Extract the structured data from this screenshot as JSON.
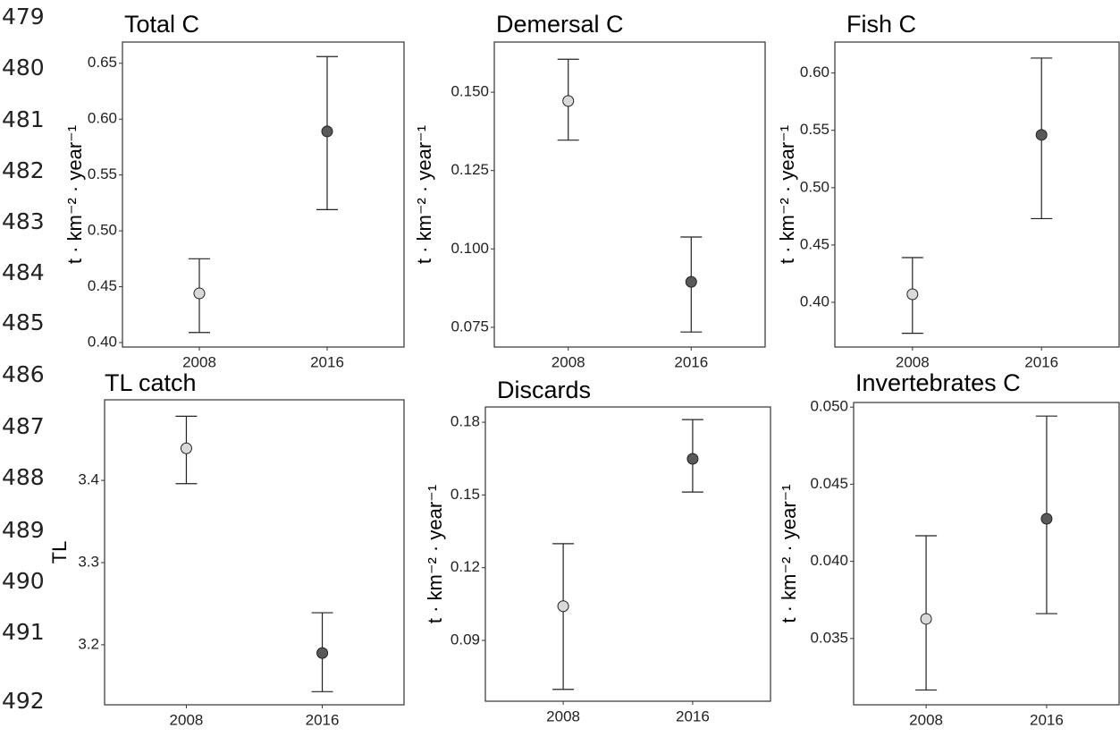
{
  "line_numbers": [
    "479",
    "480",
    "481",
    "482",
    "483",
    "484",
    "485",
    "486",
    "487",
    "488",
    "489",
    "490",
    "491",
    "492"
  ],
  "chart_data": [
    {
      "type": "errorbar",
      "title": "Total C",
      "y_label": "t · km⁻² · year⁻¹",
      "categories": [
        "2008",
        "2016"
      ],
      "values": [
        0.444,
        0.589
      ],
      "lower": [
        0.409,
        0.519
      ],
      "upper": [
        0.475,
        0.656
      ],
      "colors": [
        "#d9d9d9",
        "#595959"
      ],
      "ylim": [
        0.396,
        0.669
      ],
      "yticks": [
        {
          "value": 0.4,
          "label": "0.40"
        },
        0.45,
        {
          "value": 0.5,
          "label": "0.50"
        },
        0.55,
        {
          "value": 0.6,
          "label": "0.60"
        },
        0.65
      ]
    },
    {
      "type": "errorbar",
      "title": "Demersal C",
      "y_label": "t · km⁻² · year⁻¹",
      "categories": [
        "2008",
        "2016"
      ],
      "values": [
        0.1472,
        0.0895
      ],
      "lower": [
        0.1347,
        0.0735
      ],
      "upper": [
        0.1605,
        0.1038
      ],
      "colors": [
        "#d9d9d9",
        "#595959"
      ],
      "ylim": [
        0.0687,
        0.166
      ],
      "yticks": [
        {
          "value": 0.075,
          "label": "0.075"
        },
        {
          "value": 0.1,
          "label": "0.100"
        },
        {
          "value": 0.125,
          "label": "0.125"
        },
        {
          "value": 0.15,
          "label": "0.150"
        }
      ]
    },
    {
      "type": "errorbar",
      "title": "Fish C",
      "y_label": "t · km⁻² · year⁻¹",
      "categories": [
        "2008",
        "2016"
      ],
      "values": [
        0.407,
        0.546
      ],
      "lower": [
        0.373,
        0.473
      ],
      "upper": [
        0.439,
        0.613
      ],
      "colors": [
        "#d9d9d9",
        "#595959"
      ],
      "ylim": [
        0.361,
        0.627
      ],
      "yticks": [
        {
          "value": 0.4,
          "label": "0.40"
        },
        0.45,
        {
          "value": 0.5,
          "label": "0.50"
        },
        0.55,
        {
          "value": 0.6,
          "label": "0.60"
        }
      ]
    },
    {
      "type": "errorbar",
      "title": "TL catch",
      "y_label": "TL",
      "categories": [
        "2008",
        "2016"
      ],
      "values": [
        3.439,
        3.19
      ],
      "lower": [
        3.396,
        3.143
      ],
      "upper": [
        3.478,
        3.239
      ],
      "colors": [
        "#d9d9d9",
        "#595959"
      ],
      "ylim": [
        3.127,
        3.498
      ],
      "yticks": [
        3.2,
        3.3,
        3.4
      ]
    },
    {
      "type": "errorbar",
      "title": "Discards",
      "y_label": "t · km⁻² · year⁻¹",
      "categories": [
        "2008",
        "2016"
      ],
      "values": [
        0.1041,
        0.1649
      ],
      "lower": [
        0.0698,
        0.1512
      ],
      "upper": [
        0.1299,
        0.1811
      ],
      "colors": [
        "#d9d9d9",
        "#595959"
      ],
      "ylim": [
        0.0649,
        0.1863
      ],
      "yticks": [
        0.09,
        0.12,
        0.15,
        0.18
      ]
    },
    {
      "type": "errorbar",
      "title": "Invertebrates C",
      "y_label": "t · km⁻² · year⁻¹",
      "categories": [
        "2008",
        "2016"
      ],
      "values": [
        0.03627,
        0.04276
      ],
      "lower": [
        0.03166,
        0.03661
      ],
      "upper": [
        0.04166,
        0.04942
      ],
      "colors": [
        "#d9d9d9",
        "#595959"
      ],
      "ylim": [
        0.0307,
        0.0503
      ],
      "yticks": [
        0.035,
        {
          "value": 0.04,
          "label": "0.040"
        },
        0.045,
        {
          "value": 0.05,
          "label": "0.050"
        }
      ]
    }
  ]
}
